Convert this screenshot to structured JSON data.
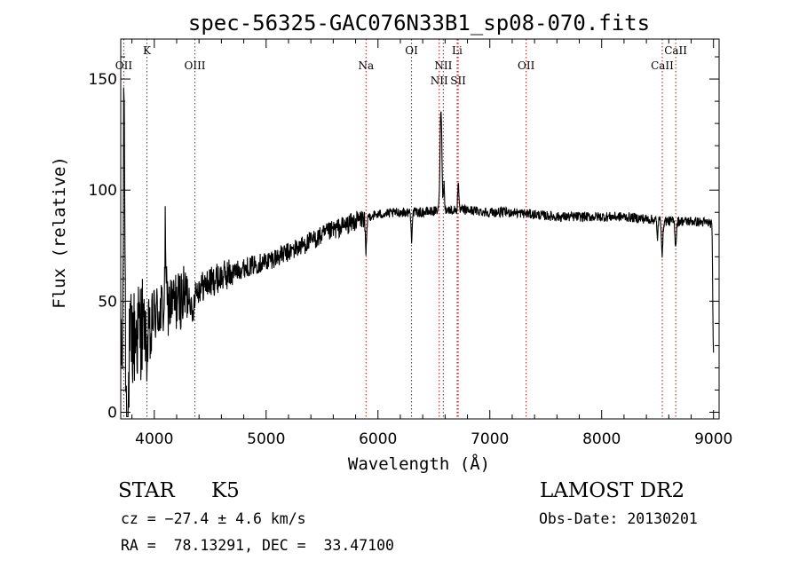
{
  "chart_data": {
    "type": "line",
    "title": "spec-56325-GAC076N33B1_sp08-070.fits",
    "xlabel": "Wavelength (Å)",
    "ylabel": "Flux (relative)",
    "xlim": [
      3700,
      9050
    ],
    "ylim": [
      -3,
      168
    ],
    "xticks": [
      4000,
      5000,
      6000,
      7000,
      8000,
      9000
    ],
    "yticks": [
      0,
      50,
      100,
      150
    ],
    "xtick_labels": [
      "4000",
      "5000",
      "6000",
      "7000",
      "8000",
      "9000"
    ],
    "ytick_labels": [
      "0",
      "50",
      "100",
      "150"
    ],
    "grid": false,
    "line_color": "#000000",
    "marker_color": "#a01818",
    "lines": [
      {
        "label": "OII",
        "wavelength": 3727,
        "row": 2
      },
      {
        "label": "K",
        "wavelength": 3934,
        "row": 1
      },
      {
        "label": "OIII",
        "wavelength": 4363,
        "row": 2
      },
      {
        "label": "Na",
        "wavelength": 5893,
        "row": 2
      },
      {
        "label": "OI",
        "wavelength": 6300,
        "row": 1
      },
      {
        "label": "NII",
        "wavelength": 6548,
        "row": 3
      },
      {
        "label": "NII",
        "wavelength": 6584,
        "row": 2
      },
      {
        "label": "SII",
        "wavelength": 6717,
        "row": 3
      },
      {
        "label": "Li",
        "wavelength": 6708,
        "row": 1
      },
      {
        "label": "OII",
        "wavelength": 7325,
        "row": 2
      },
      {
        "label": "CaII",
        "wavelength": 8542,
        "row": 2
      },
      {
        "label": "CaII",
        "wavelength": 8662,
        "row": 1
      }
    ],
    "continuum": {
      "x": [
        3700,
        3800,
        3900,
        4000,
        4200,
        4400,
        4600,
        4800,
        5000,
        5200,
        5400,
        5600,
        5800,
        5900,
        6000,
        6200,
        6400,
        6600,
        6800,
        7000,
        7200,
        7400,
        7600,
        7800,
        8000,
        8200,
        8400,
        8600,
        8800,
        9000
      ],
      "y": [
        20,
        32,
        40,
        44,
        50,
        56,
        61,
        65,
        68,
        72,
        77,
        82,
        86,
        88,
        89,
        90,
        90,
        91,
        91,
        90,
        90,
        89,
        88,
        88,
        88,
        88,
        87,
        86,
        86,
        85
      ]
    },
    "features": [
      {
        "x": 3730,
        "depth": 125,
        "width": 6
      },
      {
        "x": 3760,
        "depth": -45,
        "width": 8
      },
      {
        "x": 3934,
        "depth": -15,
        "width": 10
      },
      {
        "x": 3968,
        "depth": -12,
        "width": 8
      },
      {
        "x": 4100,
        "depth": 35,
        "width": 5
      },
      {
        "x": 4340,
        "depth": -12,
        "width": 10
      },
      {
        "x": 5893,
        "depth": -18,
        "width": 6
      },
      {
        "x": 6300,
        "depth": -12,
        "width": 5
      },
      {
        "x": 6563,
        "depth": 47,
        "width": 8
      },
      {
        "x": 6590,
        "depth": 12,
        "width": 5
      },
      {
        "x": 6717,
        "depth": 12,
        "width": 5
      },
      {
        "x": 8498,
        "depth": -8,
        "width": 5
      },
      {
        "x": 8542,
        "depth": -15,
        "width": 6
      },
      {
        "x": 8662,
        "depth": -11,
        "width": 6
      },
      {
        "x": 9000,
        "depth": -60,
        "width": 6
      }
    ]
  },
  "footer": {
    "object_class": "STAR",
    "subclass": "K5",
    "survey": "LAMOST DR2",
    "cz": "cz = −27.4 ± 4.6 km/s",
    "obs_date": "Obs-Date: 20130201",
    "radec": "RA =  78.13291, DEC =  33.47100"
  }
}
